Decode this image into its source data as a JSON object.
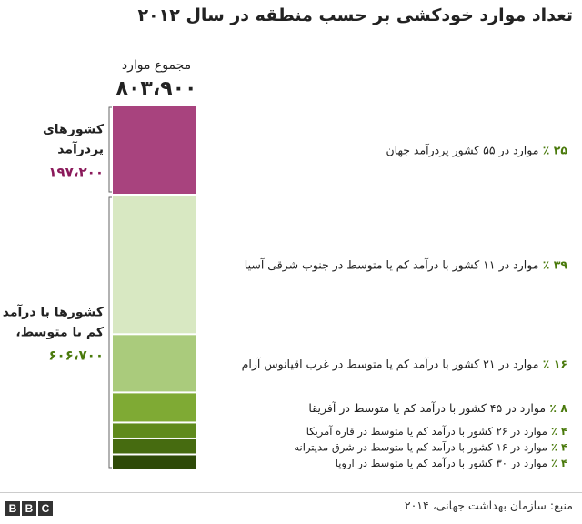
{
  "chart_data": {
    "type": "bar",
    "title": "تعداد موارد خودکشی بر حسب منطقه در سال ۲۰۱۲",
    "total": {
      "label": "مجموع موارد",
      "value": "۸۰۳،۹۰۰"
    },
    "groups": [
      {
        "label_lines": [
          "کشورهای",
          "پردرآمد"
        ],
        "value": "۱۹۷،۲۰۰",
        "value_color": "#8b1a5b",
        "segments": [
          0
        ]
      },
      {
        "label_lines": [
          "کشورها با درآمد",
          "کم یا متوسط،"
        ],
        "value": "۶۰۶،۷۰۰",
        "value_color": "#4a7a0c",
        "segments": [
          1,
          2,
          3,
          4,
          5,
          6
        ]
      }
    ],
    "segments": [
      {
        "pct": 25,
        "pct_label": "۲۵ ٪",
        "text": "موارد در ۵۵ کشور پردرآمد جهان",
        "color": "#a8437e"
      },
      {
        "pct": 39,
        "pct_label": "۳۹ ٪",
        "text": "موارد در ۱۱ کشور با درآمد کم یا متوسط در جنوب شرقی آسیا",
        "color": "#d8e8c2"
      },
      {
        "pct": 16,
        "pct_label": "۱۶ ٪",
        "text": "موارد در ۲۱ کشور با درآمد کم یا متوسط در غرب اقیانوس آرام",
        "color": "#aacb7c"
      },
      {
        "pct": 8,
        "pct_label": "۸ ٪",
        "text": "موارد در ۴۵ کشور با درآمد کم یا متوسط در آفریقا",
        "color": "#7faa34"
      },
      {
        "pct": 4,
        "pct_label": "۴ ٪",
        "text": "موارد در ۲۶ کشور با درآمد کم یا متوسط در قاره آمریکا",
        "color": "#5f8a1c"
      },
      {
        "pct": 4,
        "pct_label": "۴ ٪",
        "text": "موارد در ۱۶ کشور با درآمد کم یا متوسط در شرق مدیترانه",
        "color": "#466b10"
      },
      {
        "pct": 4,
        "pct_label": "۴ ٪",
        "text": "موارد در ۳۰ کشور با درآمد کم یا متوسط در اروپا",
        "color": "#2e4a08"
      }
    ],
    "pct_color": "#4a7a0c"
  },
  "footer": {
    "source": "منبع: سازمان بهداشت جهانی، ۲۰۱۴",
    "logo_letters": [
      "B",
      "B",
      "C"
    ]
  }
}
